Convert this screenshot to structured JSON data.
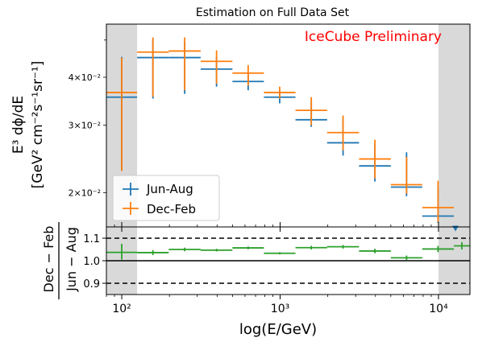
{
  "chart_data": {
    "type": "errorbar",
    "title": "Estimation on Full Data Set",
    "annotation": "IceCube Preliminary",
    "xlabel": "log(E/GeV)",
    "top_panel": {
      "ylabel_line1": "E³ dϕ/dE",
      "ylabel_line2": "[GeV² cm⁻²s⁻¹sr⁻¹]",
      "yscale": "log",
      "ylim": [
        0.0163,
        0.055
      ],
      "yticks": [
        {
          "value": 0.02,
          "label": "2×10⁻²"
        },
        {
          "value": 0.03,
          "label": "3×10⁻²"
        },
        {
          "value": 0.04,
          "label": "4×10⁻²"
        }
      ],
      "legend_placement": "lower-left",
      "series": [
        {
          "name": "Jun-Aug",
          "color": "#1f77b4",
          "points": [
            {
              "xlo": 80,
              "xhi": 125,
              "y": 0.0355,
              "ylo": 0.0228,
              "yhi": 0.0452
            },
            {
              "xlo": 125,
              "xhi": 198,
              "y": 0.045,
              "ylo": 0.0352,
              "yhi": 0.0502
            },
            {
              "xlo": 198,
              "xhi": 315,
              "y": 0.045,
              "ylo": 0.0362,
              "yhi": 0.0495
            },
            {
              "xlo": 315,
              "xhi": 500,
              "y": 0.042,
              "ylo": 0.0378,
              "yhi": 0.0452
            },
            {
              "xlo": 500,
              "xhi": 790,
              "y": 0.039,
              "ylo": 0.037,
              "yhi": 0.0412
            },
            {
              "xlo": 790,
              "xhi": 1250,
              "y": 0.0355,
              "ylo": 0.0342,
              "yhi": 0.037
            },
            {
              "xlo": 1250,
              "xhi": 1980,
              "y": 0.031,
              "ylo": 0.0297,
              "yhi": 0.0345
            },
            {
              "xlo": 1980,
              "xhi": 3150,
              "y": 0.027,
              "ylo": 0.025,
              "yhi": 0.0312
            },
            {
              "xlo": 3150,
              "xhi": 5000,
              "y": 0.0235,
              "ylo": 0.0214,
              "yhi": 0.0268
            },
            {
              "xlo": 5000,
              "xhi": 7900,
              "y": 0.0207,
              "ylo": 0.0196,
              "yhi": 0.0255
            },
            {
              "xlo": 7900,
              "xhi": 12500,
              "y": 0.0174,
              "ylo": 0.0167,
              "yhi": 0.0207
            }
          ],
          "upper_limit": {
            "x": 12800,
            "y": 0.0161
          }
        },
        {
          "name": "Dec-Feb",
          "color": "#ff7f0e",
          "points": [
            {
              "xlo": 80,
              "xhi": 125,
              "y": 0.0365,
              "ylo": 0.0228,
              "yhi": 0.045
            },
            {
              "xlo": 125,
              "xhi": 198,
              "y": 0.0465,
              "ylo": 0.0356,
              "yhi": 0.0508
            },
            {
              "xlo": 198,
              "xhi": 315,
              "y": 0.0468,
              "ylo": 0.037,
              "yhi": 0.0508
            },
            {
              "xlo": 315,
              "xhi": 500,
              "y": 0.044,
              "ylo": 0.0385,
              "yhi": 0.047
            },
            {
              "xlo": 500,
              "xhi": 790,
              "y": 0.041,
              "ylo": 0.038,
              "yhi": 0.043
            },
            {
              "xlo": 790,
              "xhi": 1250,
              "y": 0.0365,
              "ylo": 0.0352,
              "yhi": 0.0378
            },
            {
              "xlo": 1250,
              "xhi": 1980,
              "y": 0.0328,
              "ylo": 0.03,
              "yhi": 0.0355
            },
            {
              "xlo": 1980,
              "xhi": 3150,
              "y": 0.0287,
              "ylo": 0.0258,
              "yhi": 0.0318
            },
            {
              "xlo": 3150,
              "xhi": 5000,
              "y": 0.0245,
              "ylo": 0.0218,
              "yhi": 0.0275
            },
            {
              "xlo": 5000,
              "xhi": 7900,
              "y": 0.021,
              "ylo": 0.0199,
              "yhi": 0.0248
            },
            {
              "xlo": 7900,
              "xhi": 12500,
              "y": 0.0183,
              "ylo": 0.0168,
              "yhi": 0.0215
            }
          ]
        }
      ]
    },
    "ratio_panel": {
      "ylabel_num": "Dec − Feb",
      "ylabel_den": "Jun − Aug",
      "ylim": [
        0.85,
        1.15
      ],
      "yticks": [
        {
          "value": 0.9,
          "label": "0.9"
        },
        {
          "value": 1.0,
          "label": "1.0"
        },
        {
          "value": 1.1,
          "label": "1.1"
        }
      ],
      "reference_lines": [
        0.9,
        1.0,
        1.1
      ],
      "color": "#2ca02c",
      "points": [
        {
          "xlo": 80,
          "xhi": 125,
          "y": 1.037,
          "ylo": 1.005,
          "yhi": 1.075
        },
        {
          "xlo": 125,
          "xhi": 198,
          "y": 1.036,
          "ylo": 1.025,
          "yhi": 1.047
        },
        {
          "xlo": 198,
          "xhi": 315,
          "y": 1.05,
          "ylo": 1.042,
          "yhi": 1.058
        },
        {
          "xlo": 315,
          "xhi": 500,
          "y": 1.047,
          "ylo": 1.041,
          "yhi": 1.053
        },
        {
          "xlo": 500,
          "xhi": 790,
          "y": 1.057,
          "ylo": 1.051,
          "yhi": 1.063
        },
        {
          "xlo": 790,
          "xhi": 1250,
          "y": 1.033,
          "ylo": 1.028,
          "yhi": 1.038
        },
        {
          "xlo": 1250,
          "xhi": 1980,
          "y": 1.058,
          "ylo": 1.05,
          "yhi": 1.066
        },
        {
          "xlo": 1980,
          "xhi": 3150,
          "y": 1.062,
          "ylo": 1.054,
          "yhi": 1.07
        },
        {
          "xlo": 3150,
          "xhi": 5000,
          "y": 1.043,
          "ylo": 1.033,
          "yhi": 1.053
        },
        {
          "xlo": 5000,
          "xhi": 7900,
          "y": 1.013,
          "ylo": 1.003,
          "yhi": 1.023
        },
        {
          "xlo": 7900,
          "xhi": 12500,
          "y": 1.052,
          "ylo": 1.038,
          "yhi": 1.066
        },
        {
          "xlo": 12500,
          "xhi": 15800,
          "y": 1.066,
          "ylo": 1.05,
          "yhi": 1.082
        }
      ]
    },
    "xscale": "log",
    "xlim": [
      80,
      15800
    ],
    "xticks": [
      {
        "value": 100,
        "label": "10²"
      },
      {
        "value": 1000,
        "label": "10³"
      },
      {
        "value": 10000,
        "label": "10⁴"
      }
    ],
    "shaded_regions": [
      {
        "from": 80,
        "to": 125
      },
      {
        "from": 10000,
        "to": 15800
      }
    ],
    "colors": {
      "shade": "#d9d9d9",
      "annotation": "#ff0000",
      "axis": "#000000"
    }
  }
}
